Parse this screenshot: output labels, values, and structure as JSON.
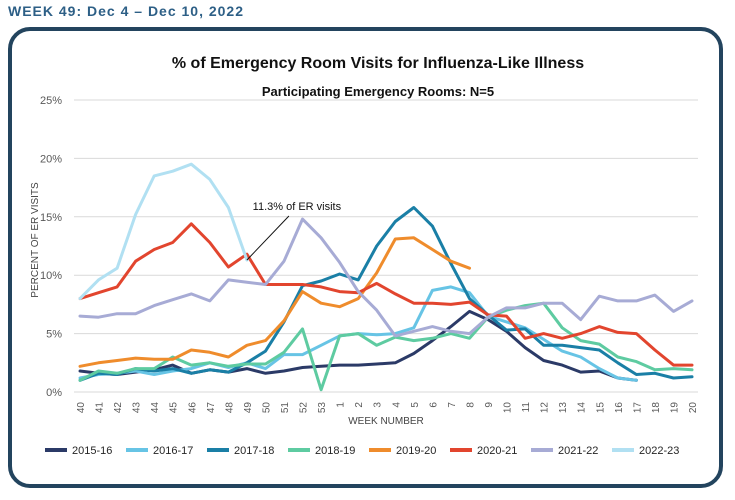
{
  "header": {
    "title": "WEEK 49: Dec 4 – Dec 10, 2022"
  },
  "chart_data": {
    "type": "line",
    "title": "% of Emergency Room Visits for Influenza-Like Illness",
    "subtitle": "Participating Emergency Rooms: N=5",
    "xlabel": "WEEK NUMBER",
    "ylabel": "PERCENT OF ER VISITS",
    "ylim": [
      0,
      25
    ],
    "yticks": [
      "0%",
      "5%",
      "10%",
      "15%",
      "20%",
      "25%"
    ],
    "grid": "horizontal",
    "legend_position": "bottom",
    "categories": [
      "40",
      "41",
      "42",
      "43",
      "44",
      "45",
      "46",
      "47",
      "48",
      "49",
      "50",
      "51",
      "52",
      "53",
      "1",
      "2",
      "3",
      "4",
      "5",
      "6",
      "7",
      "8",
      "9",
      "10",
      "11",
      "12",
      "13",
      "14",
      "15",
      "16",
      "17",
      "18",
      "19",
      "20"
    ],
    "annotation": {
      "text": "11.3% of ER visits",
      "category": "49",
      "value": 11.3
    },
    "series": [
      {
        "name": "2015-16",
        "color": "#2b3a67",
        "values": [
          1.8,
          1.6,
          1.5,
          1.7,
          1.9,
          2.3,
          1.6,
          1.9,
          1.7,
          2.0,
          1.6,
          1.8,
          2.1,
          2.2,
          2.3,
          2.3,
          2.4,
          2.5,
          3.3,
          4.4,
          5.6,
          6.9,
          6.2,
          5.2,
          3.8,
          2.7,
          2.3,
          1.7,
          1.8,
          1.2,
          1.0,
          null,
          null,
          null
        ]
      },
      {
        "name": "2016-17",
        "color": "#67c4e5",
        "values": [
          1.2,
          1.5,
          1.6,
          1.8,
          1.5,
          1.8,
          2.0,
          2.5,
          2.1,
          2.5,
          2.0,
          3.2,
          3.2,
          4.0,
          4.8,
          5.0,
          4.9,
          5.0,
          5.5,
          8.7,
          9.0,
          8.5,
          6.5,
          6.0,
          5.5,
          4.5,
          3.5,
          3.0,
          2.0,
          1.2,
          1.0,
          null,
          null,
          null
        ]
      },
      {
        "name": "2017-18",
        "color": "#1a7fa6",
        "values": [
          1.0,
          1.6,
          1.5,
          2.0,
          1.8,
          2.0,
          1.6,
          1.9,
          1.7,
          2.5,
          3.5,
          6.0,
          9.1,
          9.5,
          10.1,
          9.6,
          12.5,
          14.6,
          15.8,
          14.2,
          11.0,
          8.0,
          6.6,
          5.3,
          5.4,
          4.0,
          4.0,
          3.8,
          3.6,
          2.5,
          1.5,
          1.6,
          1.2,
          1.3
        ]
      },
      {
        "name": "2018-19",
        "color": "#5ecba1",
        "values": [
          1.0,
          1.8,
          1.6,
          2.0,
          2.0,
          3.0,
          2.3,
          2.5,
          2.2,
          2.4,
          2.4,
          3.4,
          5.4,
          0.2,
          4.8,
          5.0,
          4.0,
          4.7,
          4.4,
          4.6,
          5.0,
          4.6,
          6.4,
          7.0,
          7.4,
          7.6,
          5.5,
          4.4,
          4.1,
          3.0,
          2.6,
          1.9,
          2.0,
          1.9
        ]
      },
      {
        "name": "2019-20",
        "color": "#ef8c2c",
        "values": [
          2.2,
          2.5,
          2.7,
          2.9,
          2.8,
          2.8,
          3.6,
          3.4,
          3.0,
          4.0,
          4.4,
          6.1,
          8.6,
          7.6,
          7.3,
          8.0,
          10.2,
          13.1,
          13.2,
          12.2,
          11.2,
          10.6,
          null,
          null,
          null,
          null,
          null,
          null,
          null,
          null,
          null,
          null,
          null,
          null
        ]
      },
      {
        "name": "2020-21",
        "color": "#e2452e",
        "values": [
          8.0,
          8.5,
          9.0,
          11.2,
          12.2,
          12.8,
          14.4,
          12.8,
          10.7,
          11.8,
          9.2,
          9.2,
          9.2,
          9.0,
          8.6,
          8.5,
          9.3,
          8.4,
          7.6,
          7.6,
          7.5,
          7.7,
          6.6,
          6.5,
          4.6,
          5.0,
          4.6,
          5.0,
          5.6,
          5.1,
          5.0,
          3.6,
          2.3,
          2.3
        ]
      },
      {
        "name": "2021-22",
        "color": "#a7abd5",
        "values": [
          6.5,
          6.4,
          6.7,
          6.7,
          7.4,
          7.9,
          8.4,
          7.8,
          9.6,
          9.4,
          9.2,
          11.2,
          14.8,
          13.2,
          11.1,
          8.6,
          7.0,
          4.8,
          5.2,
          5.6,
          5.2,
          5.0,
          6.4,
          7.2,
          7.2,
          7.6,
          7.6,
          6.2,
          8.2,
          7.8,
          7.8,
          8.3,
          6.9,
          7.8
        ]
      },
      {
        "name": "2022-23",
        "color": "#b1e0f2",
        "values": [
          8.0,
          9.6,
          10.6,
          15.2,
          18.5,
          18.9,
          19.5,
          18.2,
          15.8,
          11.3,
          null,
          null,
          null,
          null,
          null,
          null,
          null,
          null,
          null,
          null,
          null,
          null,
          null,
          null,
          null,
          null,
          null,
          null,
          null,
          null,
          null,
          null,
          null,
          null
        ]
      }
    ]
  }
}
